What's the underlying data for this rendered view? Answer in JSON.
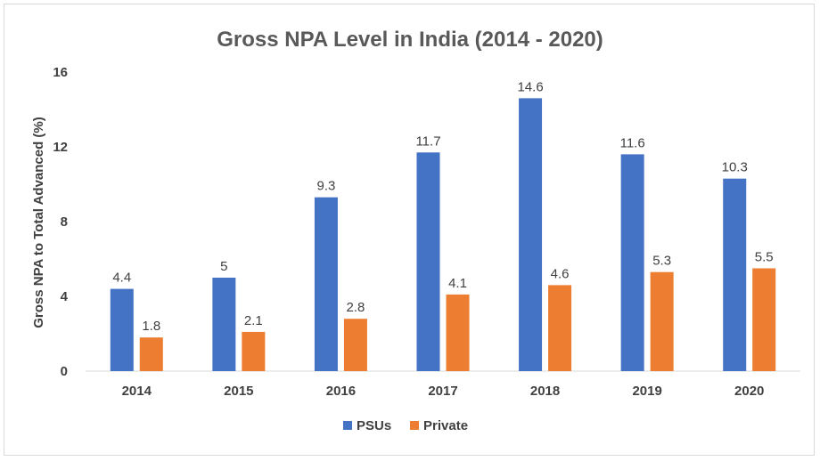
{
  "chart_data": {
    "type": "bar",
    "title": "Gross NPA Level in India (2014 - 2020)",
    "xlabel": "",
    "ylabel": "Gross NPA to Total Advanced (%)",
    "ylim": [
      0,
      16
    ],
    "yticks": [
      0,
      4,
      8,
      12,
      16
    ],
    "grid": false,
    "legend_position": "bottom",
    "categories": [
      "2014",
      "2015",
      "2016",
      "2017",
      "2018",
      "2019",
      "2020"
    ],
    "series": [
      {
        "name": "PSUs",
        "color": "#4472c4",
        "values": [
          4.4,
          5,
          9.3,
          11.7,
          14.6,
          11.6,
          10.3
        ]
      },
      {
        "name": "Private",
        "color": "#ed7d31",
        "values": [
          1.8,
          2.1,
          2.8,
          4.1,
          4.6,
          5.3,
          5.5
        ]
      }
    ]
  }
}
